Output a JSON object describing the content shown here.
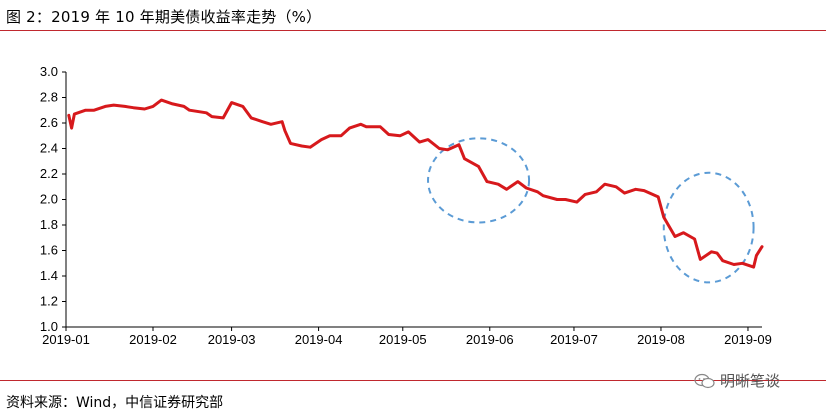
{
  "figure": {
    "title": "图 2：2019 年 10 年期美债收益率走势（%）",
    "source": "资料来源：Wind，中信证券研究部",
    "watermark": "明晰笔谈",
    "watermark_icon": "wechat-icon"
  },
  "chart_data": {
    "type": "line",
    "title": "",
    "xlabel": "",
    "ylabel": "",
    "ylim": [
      1.0,
      3.0
    ],
    "yticks": [
      "1.0",
      "1.2",
      "1.4",
      "1.6",
      "1.8",
      "2.0",
      "2.2",
      "2.4",
      "2.6",
      "2.8",
      "3.0"
    ],
    "xlim": [
      "2019-01-01",
      "2019-09-06"
    ],
    "xticks": [
      "2019-01",
      "2019-02",
      "2019-03",
      "2019-04",
      "2019-05",
      "2019-06",
      "2019-07",
      "2019-08",
      "2019-09"
    ],
    "grid": false,
    "line_color": "#d7191c",
    "annotation_color": "#5b9bd5",
    "annotations": [
      {
        "type": "dashed-ellipse",
        "center": [
          "2019-05-28",
          2.15
        ],
        "x_halfwidth_days": 18,
        "y_halfwidth": 0.33
      },
      {
        "type": "dashed-ellipse",
        "center": [
          "2019-08-18",
          1.78
        ],
        "x_halfwidth_days": 16,
        "y_halfwidth": 0.43
      }
    ],
    "series": [
      {
        "name": "",
        "points": [
          [
            "2019-01-02",
            2.66
          ],
          [
            "2019-01-03",
            2.56
          ],
          [
            "2019-01-04",
            2.67
          ],
          [
            "2019-01-08",
            2.7
          ],
          [
            "2019-01-11",
            2.7
          ],
          [
            "2019-01-15",
            2.73
          ],
          [
            "2019-01-18",
            2.74
          ],
          [
            "2019-01-22",
            2.73
          ],
          [
            "2019-01-25",
            2.72
          ],
          [
            "2019-01-29",
            2.71
          ],
          [
            "2019-02-01",
            2.73
          ],
          [
            "2019-02-04",
            2.78
          ],
          [
            "2019-02-08",
            2.75
          ],
          [
            "2019-02-12",
            2.73
          ],
          [
            "2019-02-14",
            2.7
          ],
          [
            "2019-02-20",
            2.68
          ],
          [
            "2019-02-22",
            2.65
          ],
          [
            "2019-02-26",
            2.64
          ],
          [
            "2019-03-01",
            2.76
          ],
          [
            "2019-03-05",
            2.73
          ],
          [
            "2019-03-08",
            2.64
          ],
          [
            "2019-03-12",
            2.61
          ],
          [
            "2019-03-15",
            2.59
          ],
          [
            "2019-03-19",
            2.61
          ],
          [
            "2019-03-20",
            2.54
          ],
          [
            "2019-03-22",
            2.44
          ],
          [
            "2019-03-26",
            2.42
          ],
          [
            "2019-03-29",
            2.41
          ],
          [
            "2019-04-02",
            2.47
          ],
          [
            "2019-04-05",
            2.5
          ],
          [
            "2019-04-09",
            2.5
          ],
          [
            "2019-04-12",
            2.56
          ],
          [
            "2019-04-16",
            2.59
          ],
          [
            "2019-04-18",
            2.57
          ],
          [
            "2019-04-23",
            2.57
          ],
          [
            "2019-04-26",
            2.51
          ],
          [
            "2019-04-30",
            2.5
          ],
          [
            "2019-05-03",
            2.53
          ],
          [
            "2019-05-07",
            2.45
          ],
          [
            "2019-05-10",
            2.47
          ],
          [
            "2019-05-14",
            2.4
          ],
          [
            "2019-05-17",
            2.39
          ],
          [
            "2019-05-21",
            2.43
          ],
          [
            "2019-05-23",
            2.32
          ],
          [
            "2019-05-28",
            2.26
          ],
          [
            "2019-05-31",
            2.14
          ],
          [
            "2019-06-04",
            2.12
          ],
          [
            "2019-06-07",
            2.08
          ],
          [
            "2019-06-11",
            2.14
          ],
          [
            "2019-06-14",
            2.09
          ],
          [
            "2019-06-18",
            2.06
          ],
          [
            "2019-06-20",
            2.03
          ],
          [
            "2019-06-25",
            2.0
          ],
          [
            "2019-06-28",
            2.0
          ],
          [
            "2019-07-02",
            1.98
          ],
          [
            "2019-07-05",
            2.04
          ],
          [
            "2019-07-09",
            2.06
          ],
          [
            "2019-07-12",
            2.12
          ],
          [
            "2019-07-16",
            2.1
          ],
          [
            "2019-07-19",
            2.05
          ],
          [
            "2019-07-23",
            2.08
          ],
          [
            "2019-07-26",
            2.07
          ],
          [
            "2019-07-31",
            2.02
          ],
          [
            "2019-08-02",
            1.86
          ],
          [
            "2019-08-06",
            1.71
          ],
          [
            "2019-08-09",
            1.74
          ],
          [
            "2019-08-13",
            1.69
          ],
          [
            "2019-08-15",
            1.53
          ],
          [
            "2019-08-19",
            1.59
          ],
          [
            "2019-08-21",
            1.58
          ],
          [
            "2019-08-23",
            1.52
          ],
          [
            "2019-08-27",
            1.49
          ],
          [
            "2019-08-30",
            1.5
          ],
          [
            "2019-09-03",
            1.47
          ],
          [
            "2019-09-04",
            1.56
          ],
          [
            "2019-09-06",
            1.63
          ]
        ]
      }
    ]
  }
}
